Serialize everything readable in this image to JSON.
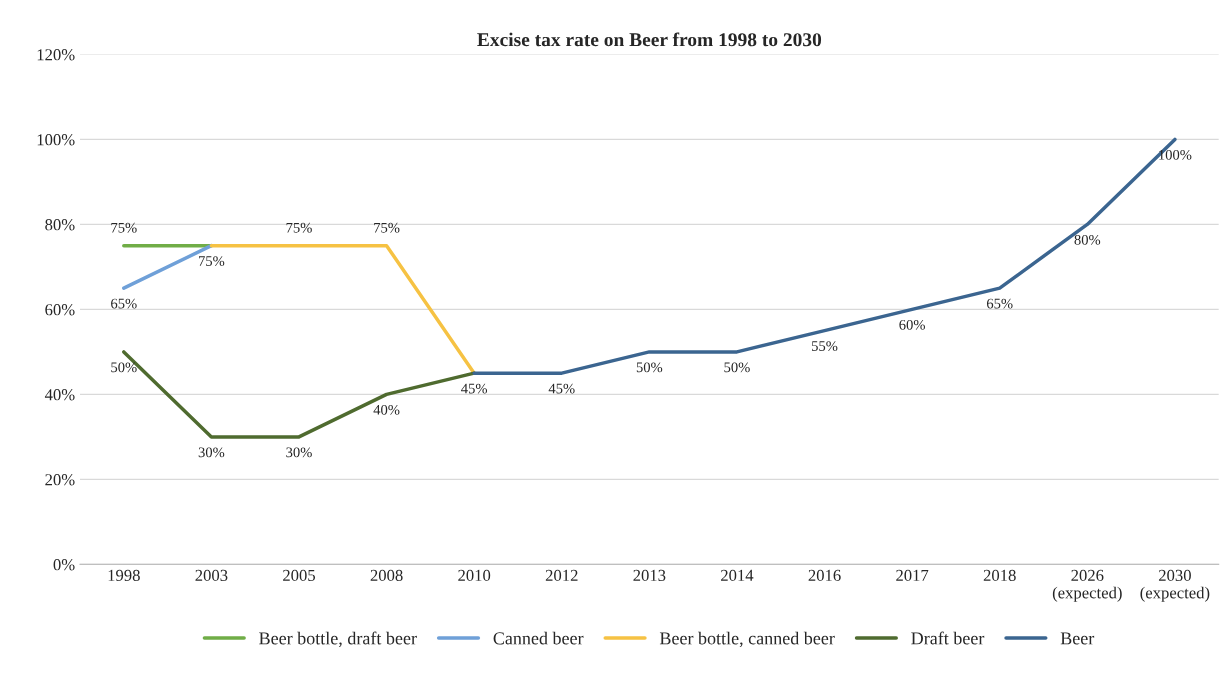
{
  "chart_data": {
    "type": "line",
    "title": "Excise tax rate on Beer from 1998 to 2030",
    "categories": [
      "1998",
      "2003",
      "2005",
      "2008",
      "2010",
      "2012",
      "2013",
      "2014",
      "2016",
      "2017",
      "2018",
      "2026\n(expected)",
      "2030\n(expected)"
    ],
    "series": [
      {
        "name": "Beer bottle, draft beer",
        "color": "#70ad47",
        "values": [
          75,
          75,
          null,
          null,
          null,
          null,
          null,
          null,
          null,
          null,
          null,
          null,
          null
        ],
        "value_labels": [
          "75%",
          null,
          null,
          null,
          null,
          null,
          null,
          null,
          null,
          null,
          null,
          null,
          null
        ]
      },
      {
        "name": "Canned beer",
        "color": "#6fa0d8",
        "values": [
          65,
          75,
          null,
          null,
          null,
          null,
          null,
          null,
          null,
          null,
          null,
          null,
          null
        ],
        "value_labels": [
          "65%",
          null,
          null,
          null,
          null,
          null,
          null,
          null,
          null,
          null,
          null,
          null,
          null
        ]
      },
      {
        "name": "Beer bottle, canned beer",
        "color": "#f6c243",
        "values": [
          null,
          75,
          75,
          75,
          45,
          null,
          null,
          null,
          null,
          null,
          null,
          null,
          null
        ],
        "value_labels": [
          null,
          "75%",
          "75%",
          "75%",
          null,
          null,
          null,
          null,
          null,
          null,
          null,
          null,
          null
        ]
      },
      {
        "name": "Draft beer",
        "color": "#4f6b2f",
        "values": [
          50,
          30,
          30,
          40,
          45,
          null,
          null,
          null,
          null,
          null,
          null,
          null,
          null
        ],
        "value_labels": [
          "50%",
          "30%",
          "30%",
          "40%",
          "45%",
          null,
          null,
          null,
          null,
          null,
          null,
          null,
          null
        ]
      },
      {
        "name": "Beer",
        "color": "#3b6590",
        "values": [
          null,
          null,
          null,
          null,
          45,
          45,
          50,
          50,
          55,
          60,
          65,
          80,
          100
        ],
        "value_labels": [
          null,
          null,
          null,
          null,
          null,
          "45%",
          "50%",
          "50%",
          "55%",
          "60%",
          "65%",
          "80%",
          "100%"
        ]
      }
    ],
    "ylim": [
      0,
      120
    ],
    "yticks": [
      {
        "value": 0,
        "label": "0%"
      },
      {
        "value": 20,
        "label": "20%"
      },
      {
        "value": 40,
        "label": "40%"
      },
      {
        "value": 60,
        "label": "60%"
      },
      {
        "value": 80,
        "label": "80%"
      },
      {
        "value": 100,
        "label": "100%"
      },
      {
        "value": 120,
        "label": "120%"
      }
    ],
    "grid": "y",
    "legend": "bottom",
    "marker": "none",
    "line_style": "solid"
  }
}
